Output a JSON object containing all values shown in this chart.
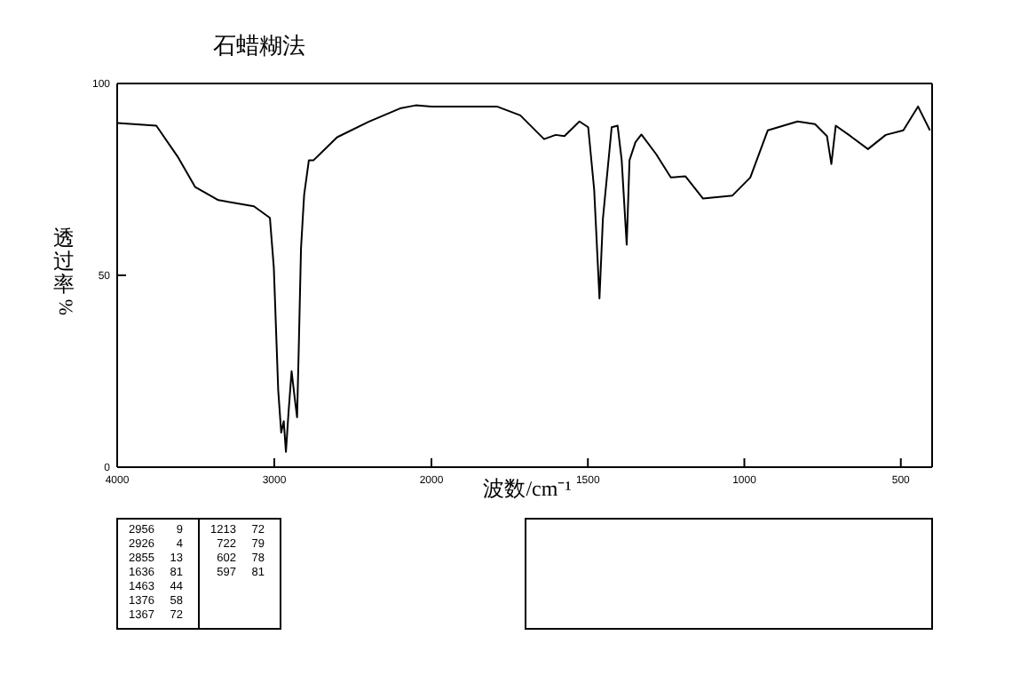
{
  "chart_data": [
    {
      "type": "line",
      "title": "石蜡糊法",
      "ylabel": "透过率%",
      "x": [
        4000,
        3751,
        3616,
        3503,
        3356,
        3130,
        3028,
        3003,
        2975,
        2956,
        2940,
        2926,
        2910,
        2890,
        2870,
        2855,
        2845,
        2830,
        2810,
        2780,
        2750,
        2700,
        2600,
        2400,
        2200,
        2100,
        2000
      ],
      "values": [
        89.7,
        89,
        81,
        73,
        69.6,
        68,
        65,
        52,
        20,
        9,
        12,
        4,
        14,
        25,
        18,
        13,
        30,
        57,
        71,
        80,
        80,
        82,
        86,
        90,
        93.5,
        94.3,
        94
      ],
      "color": "#000000",
      "xlim": [
        4000,
        2000
      ],
      "ylim": [
        0,
        100
      ],
      "xticks": [
        4000,
        3000,
        2000
      ],
      "yticks": [
        0,
        50,
        100
      ],
      "grid": false,
      "annotations": [
        "2956 9",
        "2926 4",
        "2855 13",
        "1636 81",
        "1463 44",
        "1376 58",
        "1367 72",
        "1213 72",
        "722 79",
        "602 78",
        "597 81"
      ]
    },
    {
      "type": "line",
      "xlabel": "波数/cm⁻¹",
      "x": [
        2000,
        1791,
        1716,
        1640,
        1603,
        1575,
        1527,
        1499,
        1480,
        1463,
        1452,
        1424,
        1405,
        1392,
        1376,
        1367,
        1348,
        1329,
        1282,
        1235,
        1188,
        1132,
        1038,
        981,
        925,
        830,
        774,
        736,
        722,
        708,
        661,
        605,
        548,
        492,
        445,
        407
      ],
      "values": [
        94,
        94,
        91.7,
        85.5,
        86.6,
        86.3,
        90.1,
        88.6,
        72.4,
        44,
        64.8,
        88.6,
        89,
        80,
        58,
        80,
        84.7,
        86.7,
        81.6,
        75.5,
        75.8,
        70,
        70.8,
        75.5,
        87.8,
        90.1,
        89.4,
        86.3,
        79,
        89,
        86.3,
        82.9,
        86.6,
        87.8,
        94,
        87.8
      ],
      "color": "#000000",
      "xlim": [
        2000,
        400
      ],
      "ylim": [
        0,
        100
      ],
      "xticks": [
        1500,
        1000,
        500
      ],
      "grid": false,
      "tick_labels": "x"
    }
  ]
}
